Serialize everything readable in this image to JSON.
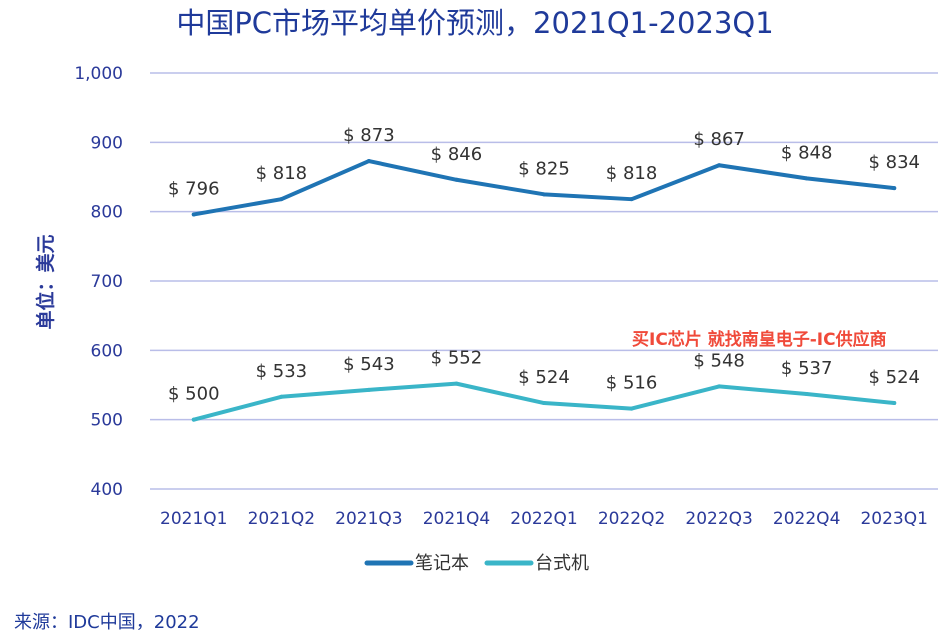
{
  "chart_data": {
    "type": "line",
    "title": "中国PC市场平均单价预测，2021Q1-2023Q1",
    "ylabel": "单位：美元",
    "xlabel": "",
    "categories": [
      "2021Q1",
      "2021Q2",
      "2021Q3",
      "2021Q4",
      "2022Q1",
      "2022Q2",
      "2022Q3",
      "2022Q4",
      "2023Q1"
    ],
    "ylim": [
      400,
      1000
    ],
    "yticks": [
      400,
      500,
      600,
      700,
      800,
      900,
      1000
    ],
    "ytick_labels": [
      "400",
      "500",
      "600",
      "700",
      "800",
      "900",
      "1,000"
    ],
    "grid": true,
    "legend_position": "bottom",
    "data_label_prefix": "$ ",
    "series": [
      {
        "name": "笔记本",
        "color": "#1f74b4",
        "values": [
          796,
          818,
          873,
          846,
          825,
          818,
          867,
          848,
          834
        ]
      },
      {
        "name": "台式机",
        "color": "#3ab5c8",
        "values": [
          500,
          533,
          543,
          552,
          524,
          516,
          548,
          537,
          524
        ]
      }
    ]
  },
  "source_note": "来源：IDC中国，2022",
  "watermark": "买IC芯片 就找南皇电子-IC供应商"
}
